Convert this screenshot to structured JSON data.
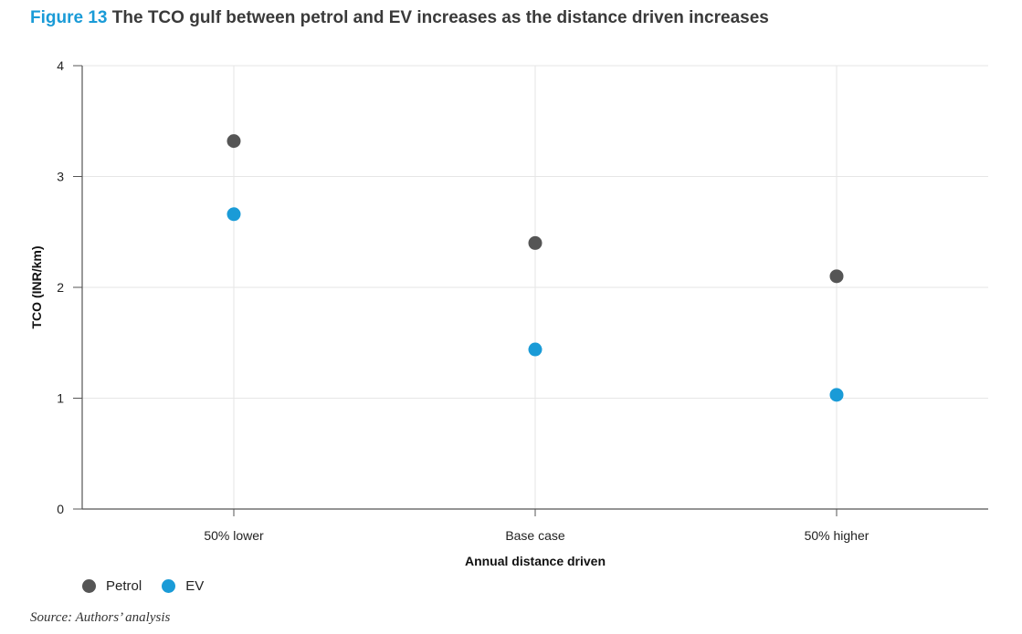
{
  "figure": {
    "number": "Figure 13",
    "title": "The TCO gulf between petrol and EV increases as the distance driven increases"
  },
  "chart_data": {
    "type": "scatter",
    "categories": [
      "50% lower",
      "Base case",
      "50% higher"
    ],
    "xlabel": "Annual distance driven",
    "ylabel": "TCO (INR/km)",
    "ylim": [
      0,
      4
    ],
    "yticks": [
      0,
      1,
      2,
      3,
      4
    ],
    "grid": true,
    "legend_position": "bottom-left",
    "series": [
      {
        "name": "Petrol",
        "color": "#555555",
        "values": [
          3.32,
          2.4,
          2.1
        ]
      },
      {
        "name": "EV",
        "color": "#1a9bd7",
        "values": [
          2.66,
          1.44,
          1.03
        ]
      }
    ]
  },
  "source": "Source: Authors’ analysis"
}
